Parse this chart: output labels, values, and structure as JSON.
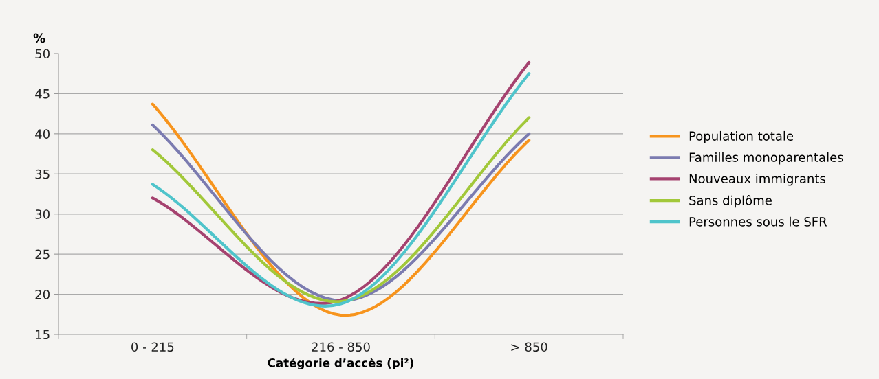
{
  "chart_data": {
    "type": "line",
    "ylabel": "%",
    "xlabel": "Catégorie d’accès (pi²)",
    "categories": [
      "0 - 215",
      "216 - 850",
      "> 850"
    ],
    "series": [
      {
        "name": "Population totale",
        "color": "#f7941d",
        "values": [
          43.7,
          17.4,
          39.2
        ]
      },
      {
        "name": "Familles monoparentales",
        "color": "#7b7bb0",
        "values": [
          41.1,
          19.2,
          40.0
        ]
      },
      {
        "name": "Nouveaux immigrants",
        "color": "#a5426f",
        "values": [
          32.0,
          19.3,
          48.9
        ]
      },
      {
        "name": "Sans diplôme",
        "color": "#a2c83a",
        "values": [
          38.0,
          19.1,
          42.0
        ]
      },
      {
        "name": "Personnes sous le SFR",
        "color": "#4fc4cb",
        "values": [
          33.7,
          18.8,
          47.5
        ]
      }
    ],
    "ylim": [
      15,
      50
    ],
    "yticks": [
      15,
      20,
      25,
      30,
      35,
      40,
      45,
      50
    ],
    "grid": "y",
    "legend": "right",
    "marker": "none",
    "line_style": "solid"
  }
}
